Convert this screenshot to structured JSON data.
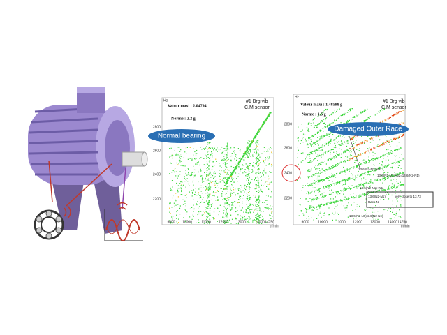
{
  "plots": [
    {
      "hz_label": "Hz",
      "valeur": "Valeur maxi : 2.04794",
      "norme": "Norme : 2.2 g",
      "sensor_line1": "#1 Brg vib",
      "sensor_line2": "C.M sensor",
      "badge": "Normal bearing",
      "yticks": [
        "2800",
        "2600",
        "2400",
        "2200"
      ],
      "xticks": [
        "9000",
        "10000",
        "11000",
        "12000",
        "13000",
        "14000",
        "14750"
      ],
      "x_unit": "tr/min"
    },
    {
      "hz_label": "Hz",
      "valeur": "Valeur maxi : 1.48598 g",
      "norme": "Norme : 1.5 g",
      "sensor_line1": "#1 Brg vib",
      "sensor_line2": "C.M sensor",
      "badge": "Damaged Outer Race",
      "yticks": [
        "2800",
        "2600",
        "2400",
        "2200"
      ],
      "xticks": [
        "9000",
        "10000",
        "11000",
        "12000",
        "13000",
        "14000",
        "14750"
      ],
      "x_unit": "tr/min",
      "annotations": [
        "13.6(N2-N1)+N2",
        "13.6(N2-N1)+N2=14.6(N2-N1)",
        "13.6(N2-N1)+N1",
        "13.6(N2-N1)",
        "very close to 13.73",
        "Race N",
        "13.6(N2-N1)-2.6(N2-N1)"
      ]
    }
  ]
}
